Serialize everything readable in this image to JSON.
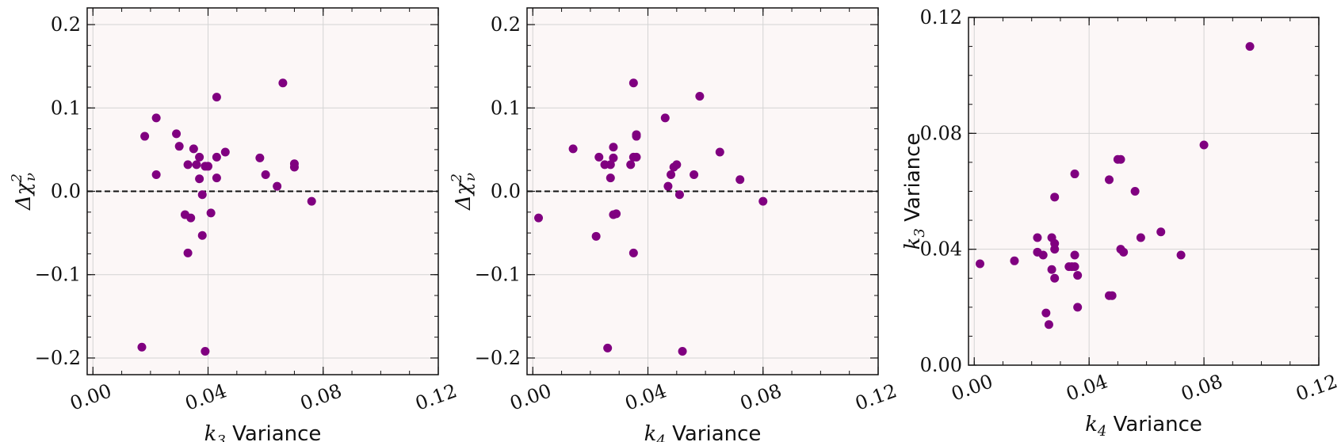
{
  "chart_data": [
    {
      "type": "scatter",
      "title": "",
      "xlabel": {
        "var": "k",
        "sub": "3",
        "text": " Variance"
      },
      "ylabel": {
        "var": "Δχ",
        "sup": "2",
        "sub": "ν",
        "text": ""
      },
      "xlim": [
        -0.002,
        0.12
      ],
      "ylim": [
        -0.22,
        0.22
      ],
      "xticks": [
        0.0,
        0.04,
        0.08,
        0.12
      ],
      "xtick_labels": [
        "0.00",
        "0.04",
        "0.08",
        "0.12"
      ],
      "yticks": [
        -0.2,
        -0.1,
        0.0,
        0.1,
        0.2
      ],
      "ytick_labels": [
        "−0.2",
        "−0.1",
        "0.0",
        "0.1",
        "0.2"
      ],
      "grid": true,
      "reference_line": {
        "y": 0.0,
        "style": "dashed"
      },
      "marker_color": "#800080",
      "x": [
        0.017,
        0.018,
        0.022,
        0.022,
        0.029,
        0.03,
        0.032,
        0.033,
        0.033,
        0.034,
        0.035,
        0.036,
        0.037,
        0.037,
        0.038,
        0.038,
        0.039,
        0.039,
        0.04,
        0.041,
        0.043,
        0.043,
        0.043,
        0.046,
        0.058,
        0.06,
        0.064,
        0.066,
        0.07,
        0.07,
        0.076
      ],
      "y": [
        -0.187,
        0.066,
        0.088,
        0.02,
        0.069,
        0.054,
        -0.028,
        0.032,
        -0.074,
        -0.032,
        0.051,
        0.032,
        0.041,
        0.015,
        -0.053,
        -0.004,
        -0.192,
        0.03,
        0.03,
        -0.026,
        0.113,
        0.041,
        0.016,
        0.047,
        0.04,
        0.02,
        0.006,
        0.13,
        0.033,
        0.029,
        -0.012
      ]
    },
    {
      "type": "scatter",
      "title": "",
      "xlabel": {
        "var": "k",
        "sub": "4",
        "text": " Variance"
      },
      "ylabel": {
        "var": "Δχ",
        "sup": "2",
        "sub": "ν",
        "text": ""
      },
      "xlim": [
        -0.002,
        0.12
      ],
      "ylim": [
        -0.22,
        0.22
      ],
      "xticks": [
        0.0,
        0.04,
        0.08,
        0.12
      ],
      "xtick_labels": [
        "0.00",
        "0.04",
        "0.08",
        "0.12"
      ],
      "yticks": [
        -0.2,
        -0.1,
        0.0,
        0.1,
        0.2
      ],
      "ytick_labels": [
        "−0.2",
        "−0.1",
        "0.0",
        "0.1",
        "0.2"
      ],
      "grid": true,
      "reference_line": {
        "y": 0.0,
        "style": "dashed"
      },
      "marker_color": "#800080",
      "x": [
        0.002,
        0.014,
        0.022,
        0.023,
        0.025,
        0.026,
        0.027,
        0.027,
        0.028,
        0.028,
        0.028,
        0.029,
        0.034,
        0.035,
        0.035,
        0.035,
        0.036,
        0.036,
        0.036,
        0.046,
        0.047,
        0.048,
        0.049,
        0.05,
        0.051,
        0.052,
        0.056,
        0.058,
        0.065,
        0.072,
        0.08
      ],
      "y": [
        -0.032,
        0.051,
        -0.054,
        0.041,
        0.032,
        -0.188,
        0.016,
        0.032,
        0.04,
        0.053,
        -0.028,
        -0.027,
        0.032,
        0.13,
        0.041,
        -0.074,
        0.066,
        0.068,
        0.041,
        0.088,
        0.006,
        0.02,
        0.029,
        0.032,
        -0.004,
        -0.192,
        0.02,
        0.114,
        0.047,
        0.014,
        -0.012
      ]
    },
    {
      "type": "scatter",
      "title": "",
      "xlabel": {
        "var": "k",
        "sub": "4",
        "text": " Variance"
      },
      "ylabel": {
        "var": "k",
        "sub": "3",
        "text": " Variance"
      },
      "xlim": [
        -0.002,
        0.12
      ],
      "ylim": [
        0.0,
        0.12
      ],
      "xticks": [
        0.0,
        0.04,
        0.08,
        0.12
      ],
      "xtick_labels": [
        "0.00",
        "0.04",
        "0.08",
        "0.12"
      ],
      "yticks": [
        0.0,
        0.04,
        0.08,
        0.12
      ],
      "ytick_labels": [
        "0.00",
        "0.04",
        "0.08",
        "0.12"
      ],
      "grid": true,
      "marker_color": "#800080",
      "x": [
        0.002,
        0.014,
        0.022,
        0.022,
        0.024,
        0.025,
        0.026,
        0.027,
        0.027,
        0.028,
        0.028,
        0.028,
        0.028,
        0.033,
        0.034,
        0.035,
        0.035,
        0.035,
        0.036,
        0.036,
        0.047,
        0.047,
        0.048,
        0.05,
        0.051,
        0.051,
        0.052,
        0.056,
        0.058,
        0.065,
        0.072,
        0.08,
        0.096
      ],
      "y": [
        0.035,
        0.036,
        0.044,
        0.039,
        0.038,
        0.018,
        0.014,
        0.044,
        0.033,
        0.042,
        0.04,
        0.058,
        0.03,
        0.034,
        0.034,
        0.066,
        0.038,
        0.034,
        0.031,
        0.02,
        0.064,
        0.024,
        0.024,
        0.071,
        0.071,
        0.04,
        0.039,
        0.06,
        0.044,
        0.046,
        0.038,
        0.076,
        0.11
      ]
    }
  ]
}
